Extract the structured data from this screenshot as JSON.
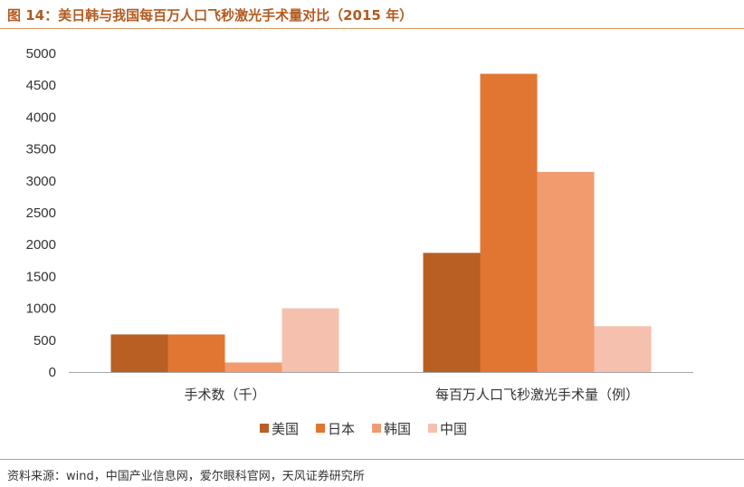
{
  "page": {
    "title": "图 14：美日韩与我国每百万人口飞秒激光手术量对比（2015 年）",
    "source": "资料来源：wind，中国产业信息网，爱尔眼科官网，天风证券研究所"
  },
  "chart_data": {
    "type": "bar",
    "categories": [
      "手术数（千）",
      "每百万人口飞秒激光手术量（例）"
    ],
    "series": [
      {
        "name": "美国",
        "color": "#b85f24",
        "values": [
          590,
          1870
        ]
      },
      {
        "name": "日本",
        "color": "#e07632",
        "values": [
          590,
          4680
        ]
      },
      {
        "name": "韩国",
        "color": "#f19b6e",
        "values": [
          150,
          3140
        ]
      },
      {
        "name": "中国",
        "color": "#f6c0ae",
        "values": [
          1000,
          720
        ]
      }
    ],
    "ylim": [
      0,
      5000
    ],
    "yticks": [
      0,
      500,
      1000,
      1500,
      2000,
      2500,
      3000,
      3500,
      4000,
      4500,
      5000
    ],
    "ytick_labels": [
      "0",
      "500",
      "1000",
      "1500",
      "2000",
      "2500",
      "3000",
      "3500",
      "4000",
      "4500",
      "5000"
    ],
    "grid": false,
    "legend_position": "bottom"
  }
}
